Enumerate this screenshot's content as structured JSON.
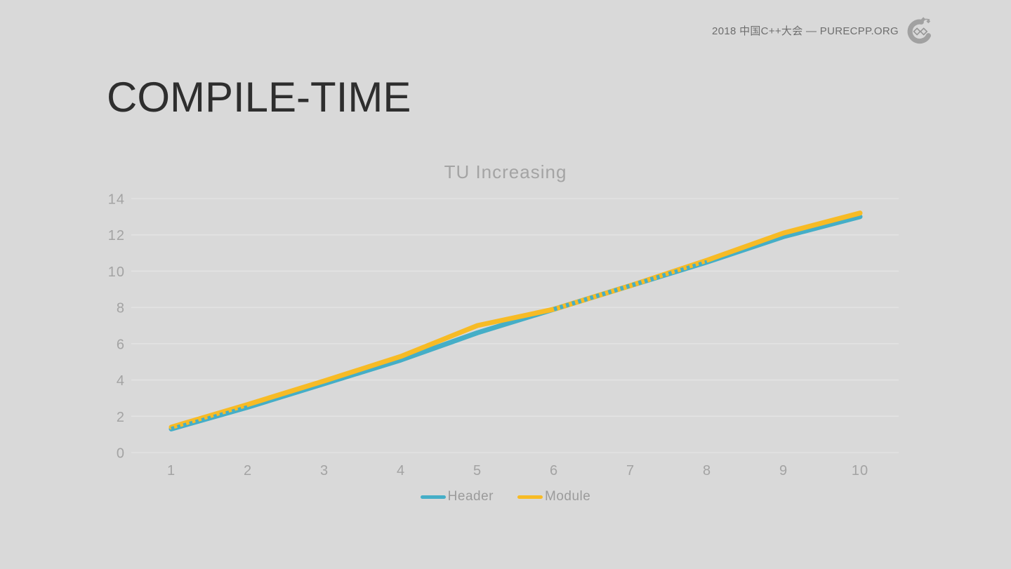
{
  "slide": {
    "background_color": "#d9d9d9",
    "header": {
      "conference_text": "2018 中国C++大会 — PURECPP.ORG",
      "logo": "purecpp-logo"
    },
    "title": "COMPILE-TIME"
  },
  "chart_data": {
    "type": "line",
    "title": "TU Increasing",
    "xlabel": "",
    "ylabel": "",
    "categories": [
      1,
      2,
      3,
      4,
      5,
      6,
      7,
      8,
      9,
      10
    ],
    "series": [
      {
        "name": "Header",
        "color": "#45aec7",
        "values": [
          1.3,
          2.5,
          3.8,
          5.1,
          6.6,
          7.9,
          9.2,
          10.5,
          11.9,
          13.0
        ]
      },
      {
        "name": "Module",
        "color": "#f7bb25",
        "values": [
          1.4,
          2.65,
          3.95,
          5.3,
          7.0,
          7.9,
          9.2,
          10.6,
          12.1,
          13.2
        ]
      }
    ],
    "ylim": [
      0,
      14
    ],
    "ytick_step": 2,
    "grid": true,
    "gridline_color": "#e5e5e5",
    "axis_label_color": "#a3a3a3",
    "legend_position": "bottom",
    "legend_text_color": "#9b9b9b"
  }
}
